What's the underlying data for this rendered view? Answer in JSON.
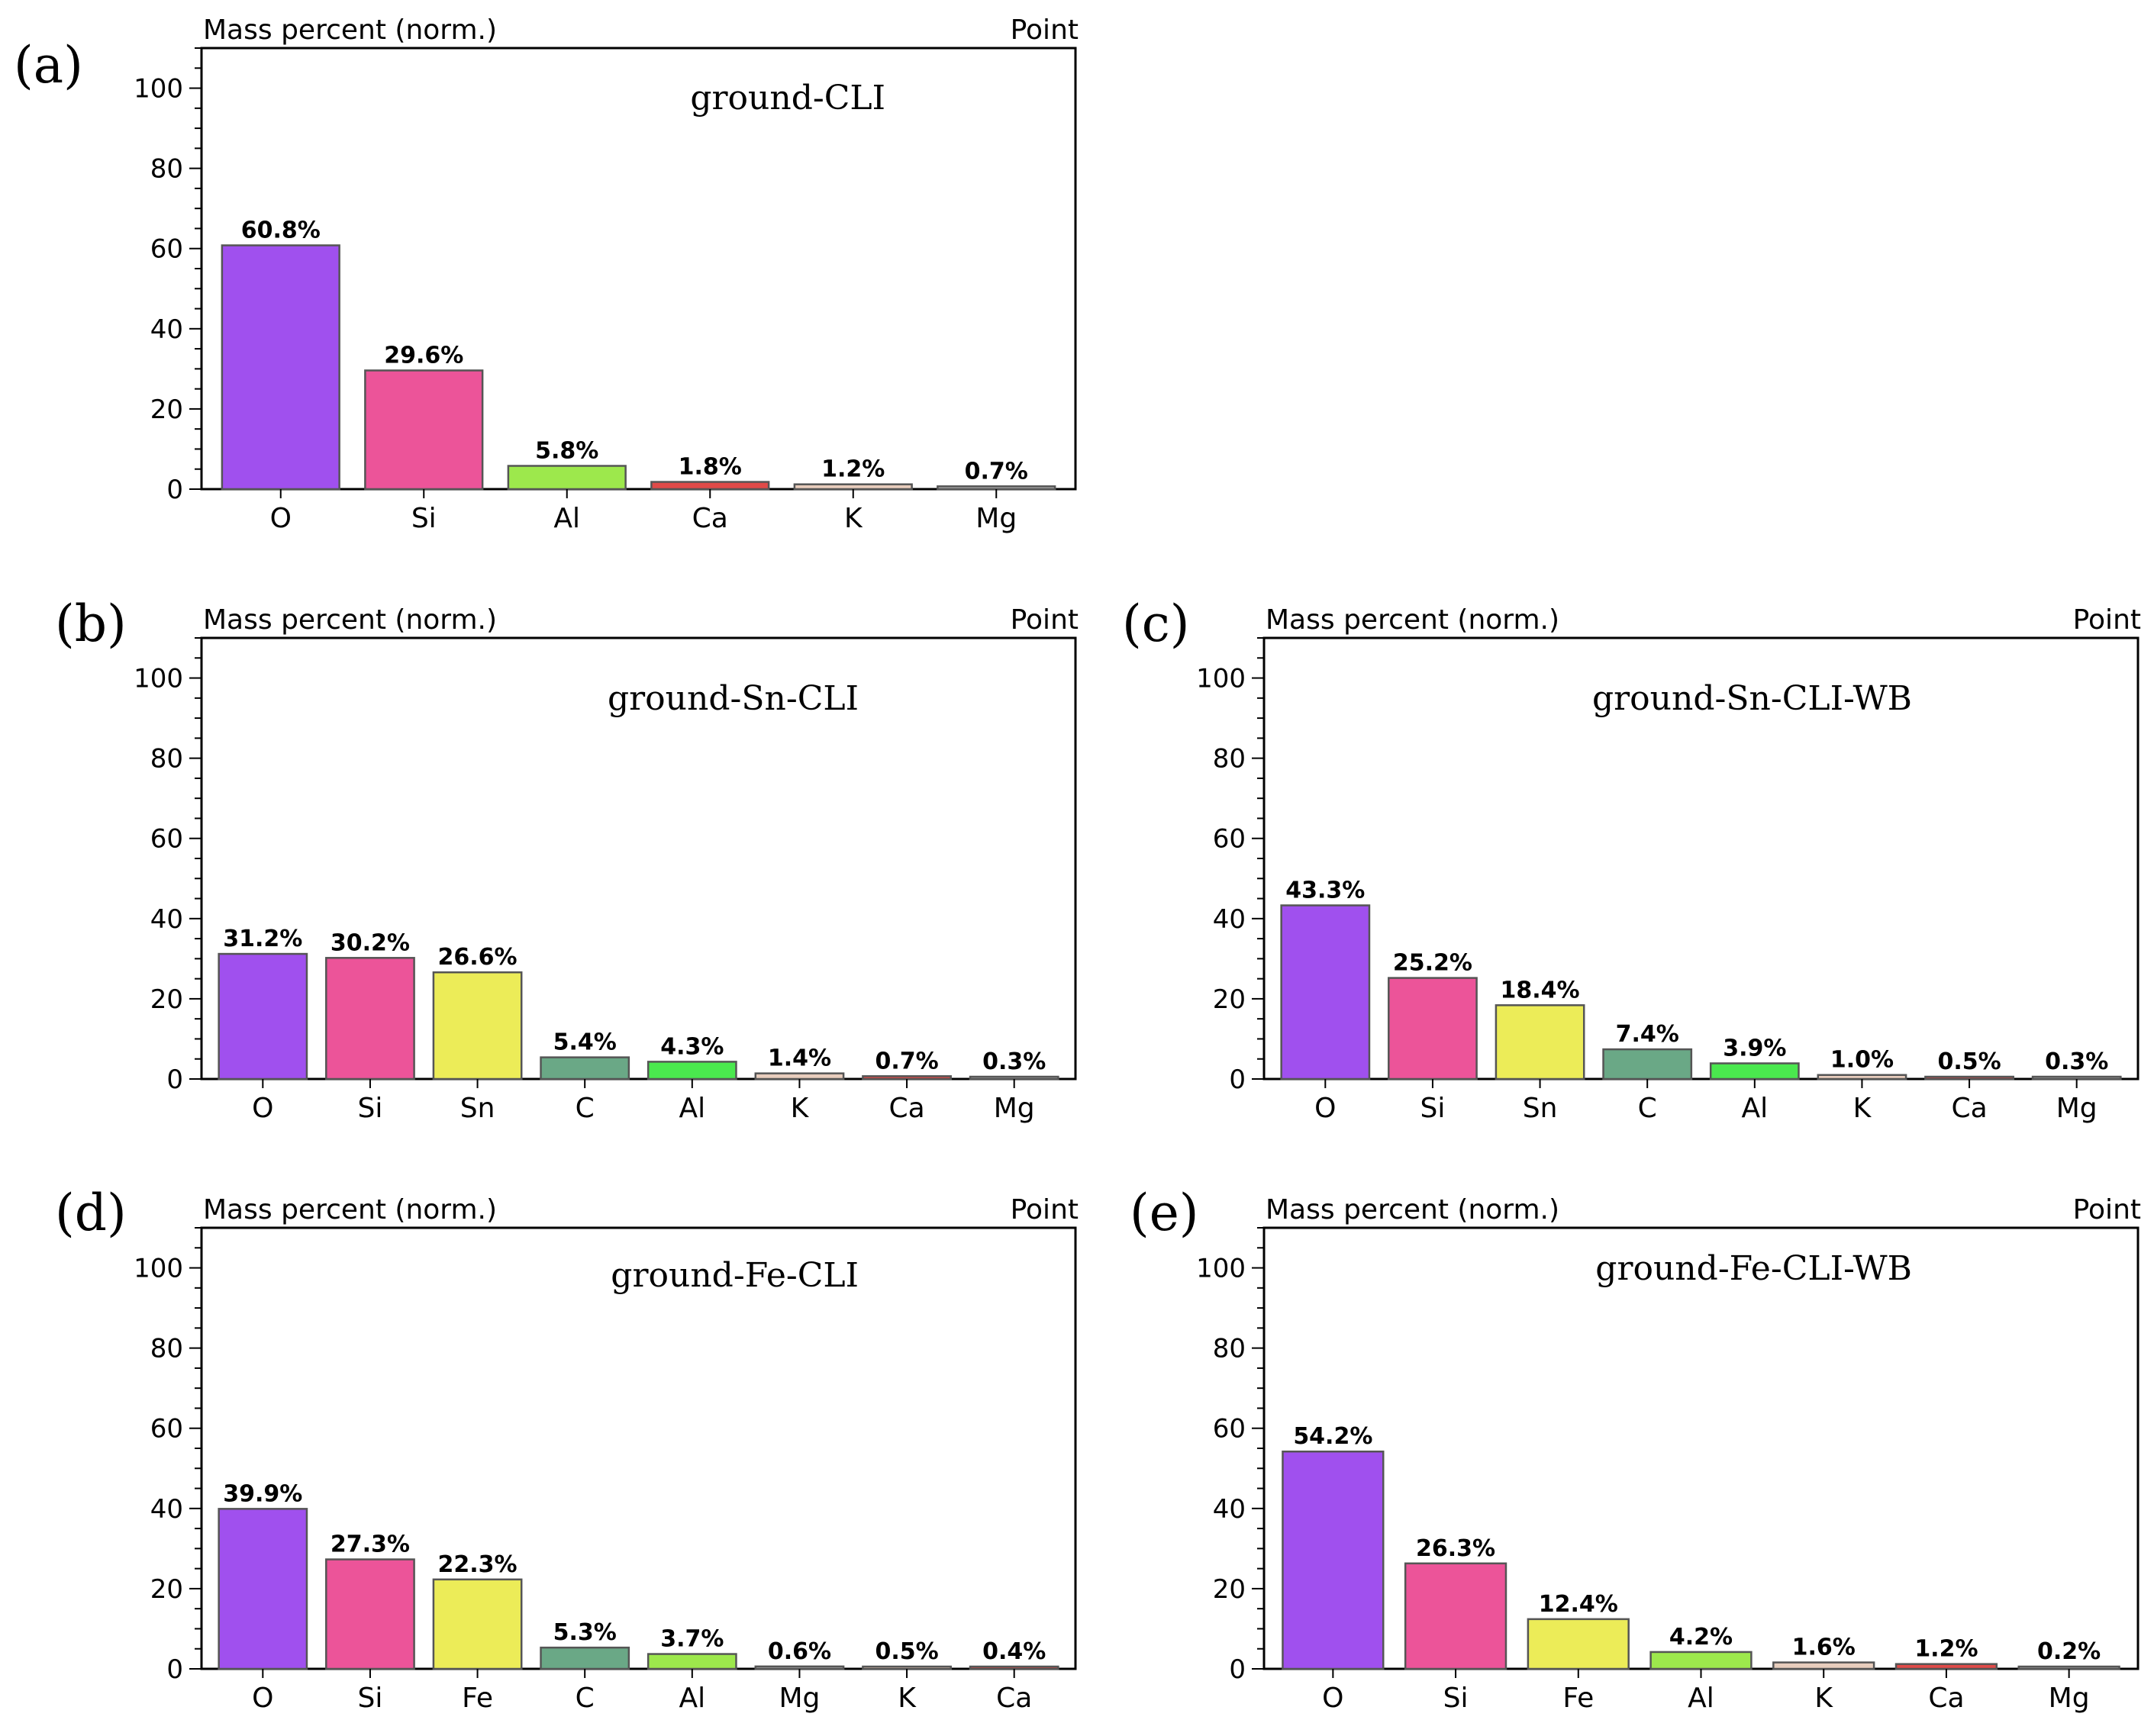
{
  "colors": {
    "O": "#a050ee",
    "Si": "#ec5499",
    "Sn": "#ecec58",
    "Fe": "#ecec58",
    "C": "#6aa886",
    "Al": "#9de84c",
    "Al_green": "#4ae84e",
    "Ca": "#e04a48",
    "K": "#e8cdbd",
    "Mg": "#b0b0b0"
  },
  "chart_data": [
    {
      "panel": "(a)",
      "type": "bar",
      "title": "ground-CLI",
      "ylabel": "Mass percent (norm.)",
      "corner_label": "Point",
      "ylim": [
        0,
        110
      ],
      "yticks": [
        0,
        20,
        40,
        60,
        80,
        100
      ],
      "categories": [
        "O",
        "Si",
        "Al",
        "Ca",
        "K",
        "Mg"
      ],
      "values": [
        60.8,
        29.6,
        5.8,
        1.8,
        1.2,
        0.7
      ],
      "value_labels": [
        "60.8%",
        "29.6%",
        "5.8%",
        "1.8%",
        "1.2%",
        "0.7%"
      ],
      "bar_colors": [
        "#a050ee",
        "#ec5499",
        "#9de84c",
        "#e04a48",
        "#e8cdbd",
        "#b0b0b0"
      ]
    },
    {
      "panel": "(b)",
      "type": "bar",
      "title": "ground-Sn-CLI",
      "ylabel": "Mass percent (norm.)",
      "corner_label": "Point",
      "ylim": [
        0,
        110
      ],
      "yticks": [
        0,
        20,
        40,
        60,
        80,
        100
      ],
      "categories": [
        "O",
        "Si",
        "Sn",
        "C",
        "Al",
        "K",
        "Ca",
        "Mg"
      ],
      "values": [
        31.2,
        30.2,
        26.6,
        5.4,
        4.3,
        1.4,
        0.7,
        0.3
      ],
      "value_labels": [
        "31.2%",
        "30.2%",
        "26.6%",
        "5.4%",
        "4.3%",
        "1.4%",
        "0.7%",
        "0.3%"
      ],
      "bar_colors": [
        "#a050ee",
        "#ec5499",
        "#ecec58",
        "#6aa886",
        "#4ae84e",
        "#e8cdbd",
        "#e04a48",
        "#b0b0b0"
      ]
    },
    {
      "panel": "(c)",
      "type": "bar",
      "title": "ground-Sn-CLI-WB",
      "ylabel": "Mass percent (norm.)",
      "corner_label": "Point",
      "ylim": [
        0,
        110
      ],
      "yticks": [
        0,
        20,
        40,
        60,
        80,
        100
      ],
      "categories": [
        "O",
        "Si",
        "Sn",
        "C",
        "Al",
        "K",
        "Ca",
        "Mg"
      ],
      "values": [
        43.3,
        25.2,
        18.4,
        7.4,
        3.9,
        1.0,
        0.5,
        0.3
      ],
      "value_labels": [
        "43.3%",
        "25.2%",
        "18.4%",
        "7.4%",
        "3.9%",
        "1.0%",
        "0.5%",
        "0.3%"
      ],
      "bar_colors": [
        "#a050ee",
        "#ec5499",
        "#ecec58",
        "#6aa886",
        "#4ae84e",
        "#e8cdbd",
        "#e04a48",
        "#b0b0b0"
      ]
    },
    {
      "panel": "(d)",
      "type": "bar",
      "title": "ground-Fe-CLI",
      "ylabel": "Mass percent (norm.)",
      "corner_label": "Point",
      "ylim": [
        0,
        110
      ],
      "yticks": [
        0,
        20,
        40,
        60,
        80,
        100
      ],
      "categories": [
        "O",
        "Si",
        "Fe",
        "C",
        "Al",
        "Mg",
        "K",
        "Ca"
      ],
      "values": [
        39.9,
        27.3,
        22.3,
        5.3,
        3.7,
        0.6,
        0.5,
        0.4
      ],
      "value_labels": [
        "39.9%",
        "27.3%",
        "22.3%",
        "5.3%",
        "3.7%",
        "0.6%",
        "0.5%",
        "0.4%"
      ],
      "bar_colors": [
        "#a050ee",
        "#ec5499",
        "#ecec58",
        "#6aa886",
        "#9de84c",
        "#b0b0b0",
        "#e8cdbd",
        "#e04a48"
      ]
    },
    {
      "panel": "(e)",
      "type": "bar",
      "title": "ground-Fe-CLI-WB",
      "ylabel": "Mass percent (norm.)",
      "corner_label": "Point",
      "ylim": [
        0,
        110
      ],
      "yticks": [
        0,
        20,
        40,
        60,
        80,
        100
      ],
      "categories": [
        "O",
        "Si",
        "Fe",
        "Al",
        "K",
        "Ca",
        "Mg"
      ],
      "values": [
        54.2,
        26.3,
        12.4,
        4.2,
        1.6,
        1.2,
        0.2
      ],
      "value_labels": [
        "54.2%",
        "26.3%",
        "12.4%",
        "4.2%",
        "1.6%",
        "1.2%",
        "0.2%"
      ],
      "bar_colors": [
        "#a050ee",
        "#ec5499",
        "#ecec58",
        "#9de84c",
        "#e8cdbd",
        "#e04a48",
        "#b0b0b0"
      ]
    }
  ]
}
